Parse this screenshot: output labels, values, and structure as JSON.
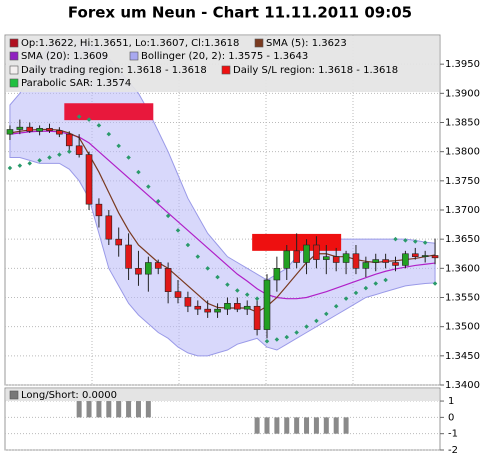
{
  "chart_data": [
    {
      "type": "candlestick",
      "title": "Forex um Neun - Chart 11.11.2011 09:05",
      "ylim": [
        1.34,
        1.4
      ],
      "yticks": [
        {
          "value": 1.34,
          "label": "1.3400"
        },
        {
          "value": 1.345,
          "label": "1.3450"
        },
        {
          "value": 1.35,
          "label": "1.3500"
        },
        {
          "value": 1.355,
          "label": "1.3550"
        },
        {
          "value": 1.36,
          "label": "1.3600"
        },
        {
          "value": 1.365,
          "label": "1.3650"
        },
        {
          "value": 1.37,
          "label": "1.3700"
        },
        {
          "value": 1.375,
          "label": "1.3750"
        },
        {
          "value": 1.38,
          "label": "1.3800"
        },
        {
          "value": 1.385,
          "label": "1.3850"
        },
        {
          "value": 1.39,
          "label": "1.3900"
        },
        {
          "value": 1.395,
          "label": "1.3950"
        }
      ],
      "grid": true,
      "up_color": "#22a022",
      "down_color": "#e01818",
      "open": [
        1.383,
        1.3838,
        1.3842,
        1.3835,
        1.384,
        1.3836,
        1.383,
        1.381,
        1.3795,
        1.371,
        1.369,
        1.365,
        1.364,
        1.36,
        1.359,
        1.361,
        1.36,
        1.356,
        1.355,
        1.3535,
        1.353,
        1.3525,
        1.353,
        1.354,
        1.353,
        1.3535,
        1.3495,
        1.358,
        1.36,
        1.363,
        1.361,
        1.364,
        1.3615,
        1.362,
        1.361,
        1.3625,
        1.36,
        1.361,
        1.3615,
        1.361,
        1.3605,
        1.3625,
        1.362,
        1.3622
      ],
      "high": [
        1.3845,
        1.3855,
        1.385,
        1.3845,
        1.3848,
        1.3842,
        1.3835,
        1.383,
        1.38,
        1.372,
        1.37,
        1.367,
        1.366,
        1.363,
        1.362,
        1.3615,
        1.361,
        1.358,
        1.356,
        1.3545,
        1.3545,
        1.354,
        1.355,
        1.355,
        1.3545,
        1.3545,
        1.359,
        1.362,
        1.364,
        1.366,
        1.365,
        1.3655,
        1.364,
        1.3635,
        1.363,
        1.364,
        1.362,
        1.3625,
        1.3625,
        1.362,
        1.363,
        1.3635,
        1.363,
        1.3651
      ],
      "low": [
        1.382,
        1.383,
        1.3832,
        1.3828,
        1.3832,
        1.3825,
        1.38,
        1.379,
        1.37,
        1.367,
        1.364,
        1.362,
        1.358,
        1.357,
        1.356,
        1.359,
        1.354,
        1.354,
        1.3525,
        1.352,
        1.3515,
        1.3515,
        1.352,
        1.3525,
        1.352,
        1.3485,
        1.348,
        1.356,
        1.358,
        1.36,
        1.359,
        1.36,
        1.359,
        1.3595,
        1.359,
        1.359,
        1.3585,
        1.3595,
        1.36,
        1.3595,
        1.36,
        1.3615,
        1.361,
        1.3607
      ],
      "close": [
        1.3838,
        1.3842,
        1.3835,
        1.384,
        1.3836,
        1.383,
        1.381,
        1.3795,
        1.371,
        1.369,
        1.365,
        1.364,
        1.36,
        1.359,
        1.361,
        1.36,
        1.356,
        1.355,
        1.3535,
        1.353,
        1.3525,
        1.353,
        1.354,
        1.353,
        1.3535,
        1.3495,
        1.358,
        1.36,
        1.363,
        1.361,
        1.364,
        1.3615,
        1.362,
        1.361,
        1.3625,
        1.36,
        1.361,
        1.3615,
        1.361,
        1.3605,
        1.3625,
        1.362,
        1.3622,
        1.3618
      ],
      "bollinger": {
        "color": "#b8b8f8",
        "upper": [
          1.388,
          1.39,
          1.393,
          1.396,
          1.398,
          1.399,
          1.399,
          1.399,
          1.3985,
          1.3975,
          1.396,
          1.394,
          1.392,
          1.39,
          1.387,
          1.3835,
          1.38,
          1.376,
          1.372,
          1.369,
          1.366,
          1.364,
          1.362,
          1.361,
          1.36,
          1.359,
          1.358,
          1.359,
          1.36,
          1.362,
          1.364,
          1.3645,
          1.365,
          1.365,
          1.365,
          1.365,
          1.365,
          1.365,
          1.365,
          1.365,
          1.365,
          1.3648,
          1.3645,
          1.3643
        ],
        "lower": [
          1.379,
          1.379,
          1.3785,
          1.378,
          1.378,
          1.378,
          1.377,
          1.375,
          1.372,
          1.366,
          1.36,
          1.357,
          1.354,
          1.352,
          1.3505,
          1.349,
          1.348,
          1.3465,
          1.3455,
          1.345,
          1.345,
          1.3455,
          1.346,
          1.347,
          1.3475,
          1.348,
          1.3465,
          1.346,
          1.347,
          1.348,
          1.349,
          1.35,
          1.351,
          1.352,
          1.353,
          1.354,
          1.355,
          1.3555,
          1.356,
          1.3565,
          1.357,
          1.3572,
          1.3574,
          1.3575
        ]
      },
      "sma20": {
        "color": "#b020c8",
        "values": [
          1.383,
          1.3832,
          1.3834,
          1.3835,
          1.3835,
          1.3834,
          1.383,
          1.3825,
          1.3815,
          1.38,
          1.3785,
          1.377,
          1.3755,
          1.374,
          1.3725,
          1.371,
          1.3695,
          1.368,
          1.3665,
          1.365,
          1.3635,
          1.362,
          1.3605,
          1.359,
          1.3578,
          1.3565,
          1.3555,
          1.355,
          1.3548,
          1.3548,
          1.355,
          1.3555,
          1.356,
          1.3566,
          1.3572,
          1.3578,
          1.3584,
          1.359,
          1.3595,
          1.3599,
          1.3602,
          1.3605,
          1.3607,
          1.3609
        ]
      },
      "sma5": {
        "color": "#7a3a20",
        "values": [
          1.3832,
          1.3835,
          1.3837,
          1.3838,
          1.3838,
          1.3837,
          1.3832,
          1.3824,
          1.3795,
          1.3765,
          1.373,
          1.3695,
          1.3665,
          1.364,
          1.3625,
          1.361,
          1.36,
          1.3585,
          1.357,
          1.3555,
          1.354,
          1.3533,
          1.3532,
          1.3532,
          1.3532,
          1.3525,
          1.3535,
          1.355,
          1.357,
          1.359,
          1.361,
          1.3625,
          1.3625,
          1.362,
          1.362,
          1.3615,
          1.3612,
          1.361,
          1.3612,
          1.3613,
          1.3615,
          1.3617,
          1.362,
          1.3623
        ]
      },
      "sar": {
        "color": "#2a9a6a",
        "values": [
          1.3772,
          1.3776,
          1.378,
          1.3785,
          1.379,
          1.3795,
          1.38,
          1.386,
          1.3855,
          1.3845,
          1.383,
          1.381,
          1.379,
          1.3765,
          1.374,
          1.3715,
          1.369,
          1.3665,
          1.364,
          1.362,
          1.36,
          1.3585,
          1.3572,
          1.3562,
          1.3555,
          1.3548,
          1.3475,
          1.3478,
          1.3482,
          1.349,
          1.35,
          1.351,
          1.3522,
          1.3535,
          1.3548,
          1.3558,
          1.3566,
          1.3574,
          1.358,
          1.365,
          1.3648,
          1.3646,
          1.3644,
          1.3574
        ]
      },
      "sl_regions": [
        {
          "start": 6,
          "end": 14,
          "low": 1.3854,
          "high": 1.3883,
          "color": "#e8183c"
        },
        {
          "start": 25,
          "end": 33,
          "low": 1.363,
          "high": 1.3659,
          "color": "#ee1010"
        }
      ],
      "legend": [
        {
          "label": "Op:1.3622, Hi:1.3651, Lo:1.3607, Cl:1.3618",
          "color": "#b01020"
        },
        {
          "label": "SMA (5): 1.3623",
          "color": "#7a3a20"
        },
        {
          "label": "SMA (20): 1.3609",
          "color": "#9020c0"
        },
        {
          "label": "Bollinger (20, 2): 1.3575 - 1.3643",
          "color": "#a8a8f0"
        },
        {
          "label": "Daily trading region: 1.3618 - 1.3618",
          "color": "#f4f0f0"
        },
        {
          "label": "Daily S/L region: 1.3618 - 1.3618",
          "color": "#ee1010"
        },
        {
          "label": "Parabolic SAR: 1.3574",
          "color": "#20c040"
        }
      ]
    },
    {
      "type": "bar",
      "ylim": [
        -2,
        1.8
      ],
      "yticks": [
        1,
        0,
        -1,
        -2
      ],
      "color": "#8a8a8a",
      "values": [
        0,
        0,
        0,
        0,
        0,
        0,
        0,
        1,
        1,
        1,
        1,
        1,
        1,
        1,
        1,
        0,
        0,
        0,
        0,
        0,
        0,
        0,
        0,
        0,
        0,
        -1,
        -1,
        -1,
        -1,
        -1,
        -1,
        -1,
        -1,
        -1,
        -1,
        0,
        0,
        0,
        0,
        0,
        0,
        0,
        0,
        0
      ],
      "legend": [
        {
          "label": "Long/Short: 0.0000",
          "color": "#777"
        }
      ]
    }
  ]
}
